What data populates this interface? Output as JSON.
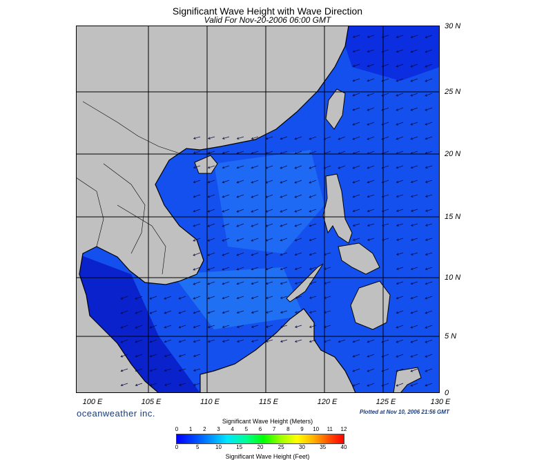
{
  "title": "Significant Wave Height with Wave Direction",
  "subtitle": "Valid For Nov-20-2006 06:00 GMT",
  "lat_labels": [
    "30 N",
    "25 N",
    "20 N",
    "15 N",
    "10 N",
    "5 N",
    "0"
  ],
  "lon_labels": [
    "100 E",
    "105 E",
    "110 E",
    "115 E",
    "120 E",
    "125 E",
    "130 E"
  ],
  "brand": "oceanweather inc.",
  "plotted": "Plotted at Nov 10, 2006 21:56 GMT",
  "colorbar": {
    "title_top": "Significant Wave Height (Meters)",
    "title_bottom": "Significant Wave Height (Feet)",
    "meter_ticks": [
      "0",
      "1",
      "2",
      "3",
      "4",
      "5",
      "6",
      "7",
      "8",
      "9",
      "10",
      "11",
      "12"
    ],
    "feet_ticks": [
      "0",
      "5",
      "10",
      "15",
      "20",
      "25",
      "30",
      "35",
      "40"
    ]
  },
  "colors": {
    "land": "#c0c0c0",
    "sea_light": "#1a5cf0",
    "sea_dark": "#0a24d8",
    "coast": "#000000",
    "arrow": "#0a0a40"
  },
  "icons": {
    "vector_arrow": "wave-direction-arrow-icon"
  }
}
